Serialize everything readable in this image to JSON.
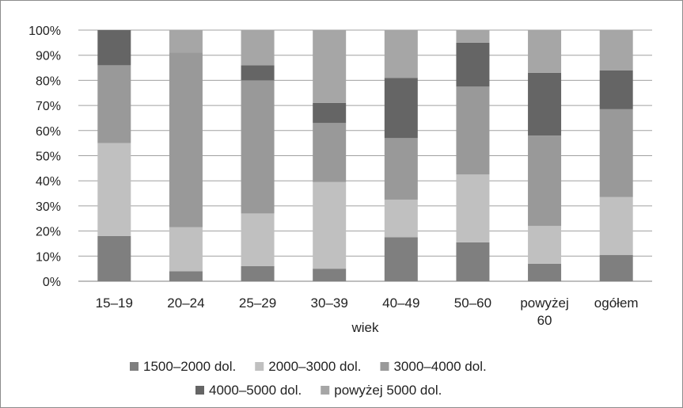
{
  "chart_data": {
    "type": "bar",
    "stacked": "percent",
    "xlabel": "wiek",
    "ylabel": "",
    "ylim": [
      0,
      100
    ],
    "yticks": [
      "0%",
      "10%",
      "20%",
      "30%",
      "40%",
      "50%",
      "60%",
      "70%",
      "80%",
      "90%",
      "100%"
    ],
    "grid": true,
    "legend_position": "bottom",
    "categories": [
      [
        "15–19"
      ],
      [
        "20–24"
      ],
      [
        "25–29"
      ],
      [
        "30–39"
      ],
      [
        "40–49"
      ],
      [
        "50–60"
      ],
      [
        "powyżej",
        "60"
      ],
      [
        "ogółem"
      ]
    ],
    "series": [
      {
        "name": "1500–2000 dol.",
        "color": "#7f7f7f",
        "values": [
          18,
          4,
          6,
          5,
          17.5,
          15.5,
          7,
          10.5
        ]
      },
      {
        "name": "2000–3000 dol.",
        "color": "#c0c0c0",
        "values": [
          37,
          17.5,
          21,
          34.5,
          15,
          27,
          15,
          23
        ]
      },
      {
        "name": "3000–4000 dol.",
        "color": "#999999",
        "values": [
          31,
          69.5,
          53,
          23.5,
          24.5,
          35,
          36,
          35
        ]
      },
      {
        "name": "4000–5000 dol.",
        "color": "#656565",
        "values": [
          14,
          0,
          6,
          8,
          24,
          17.5,
          25,
          15.5
        ]
      },
      {
        "name": "powyżej 5000 dol.",
        "color": "#a6a6a6",
        "values": [
          0,
          9,
          14,
          29,
          19,
          5,
          17,
          16
        ]
      }
    ]
  }
}
